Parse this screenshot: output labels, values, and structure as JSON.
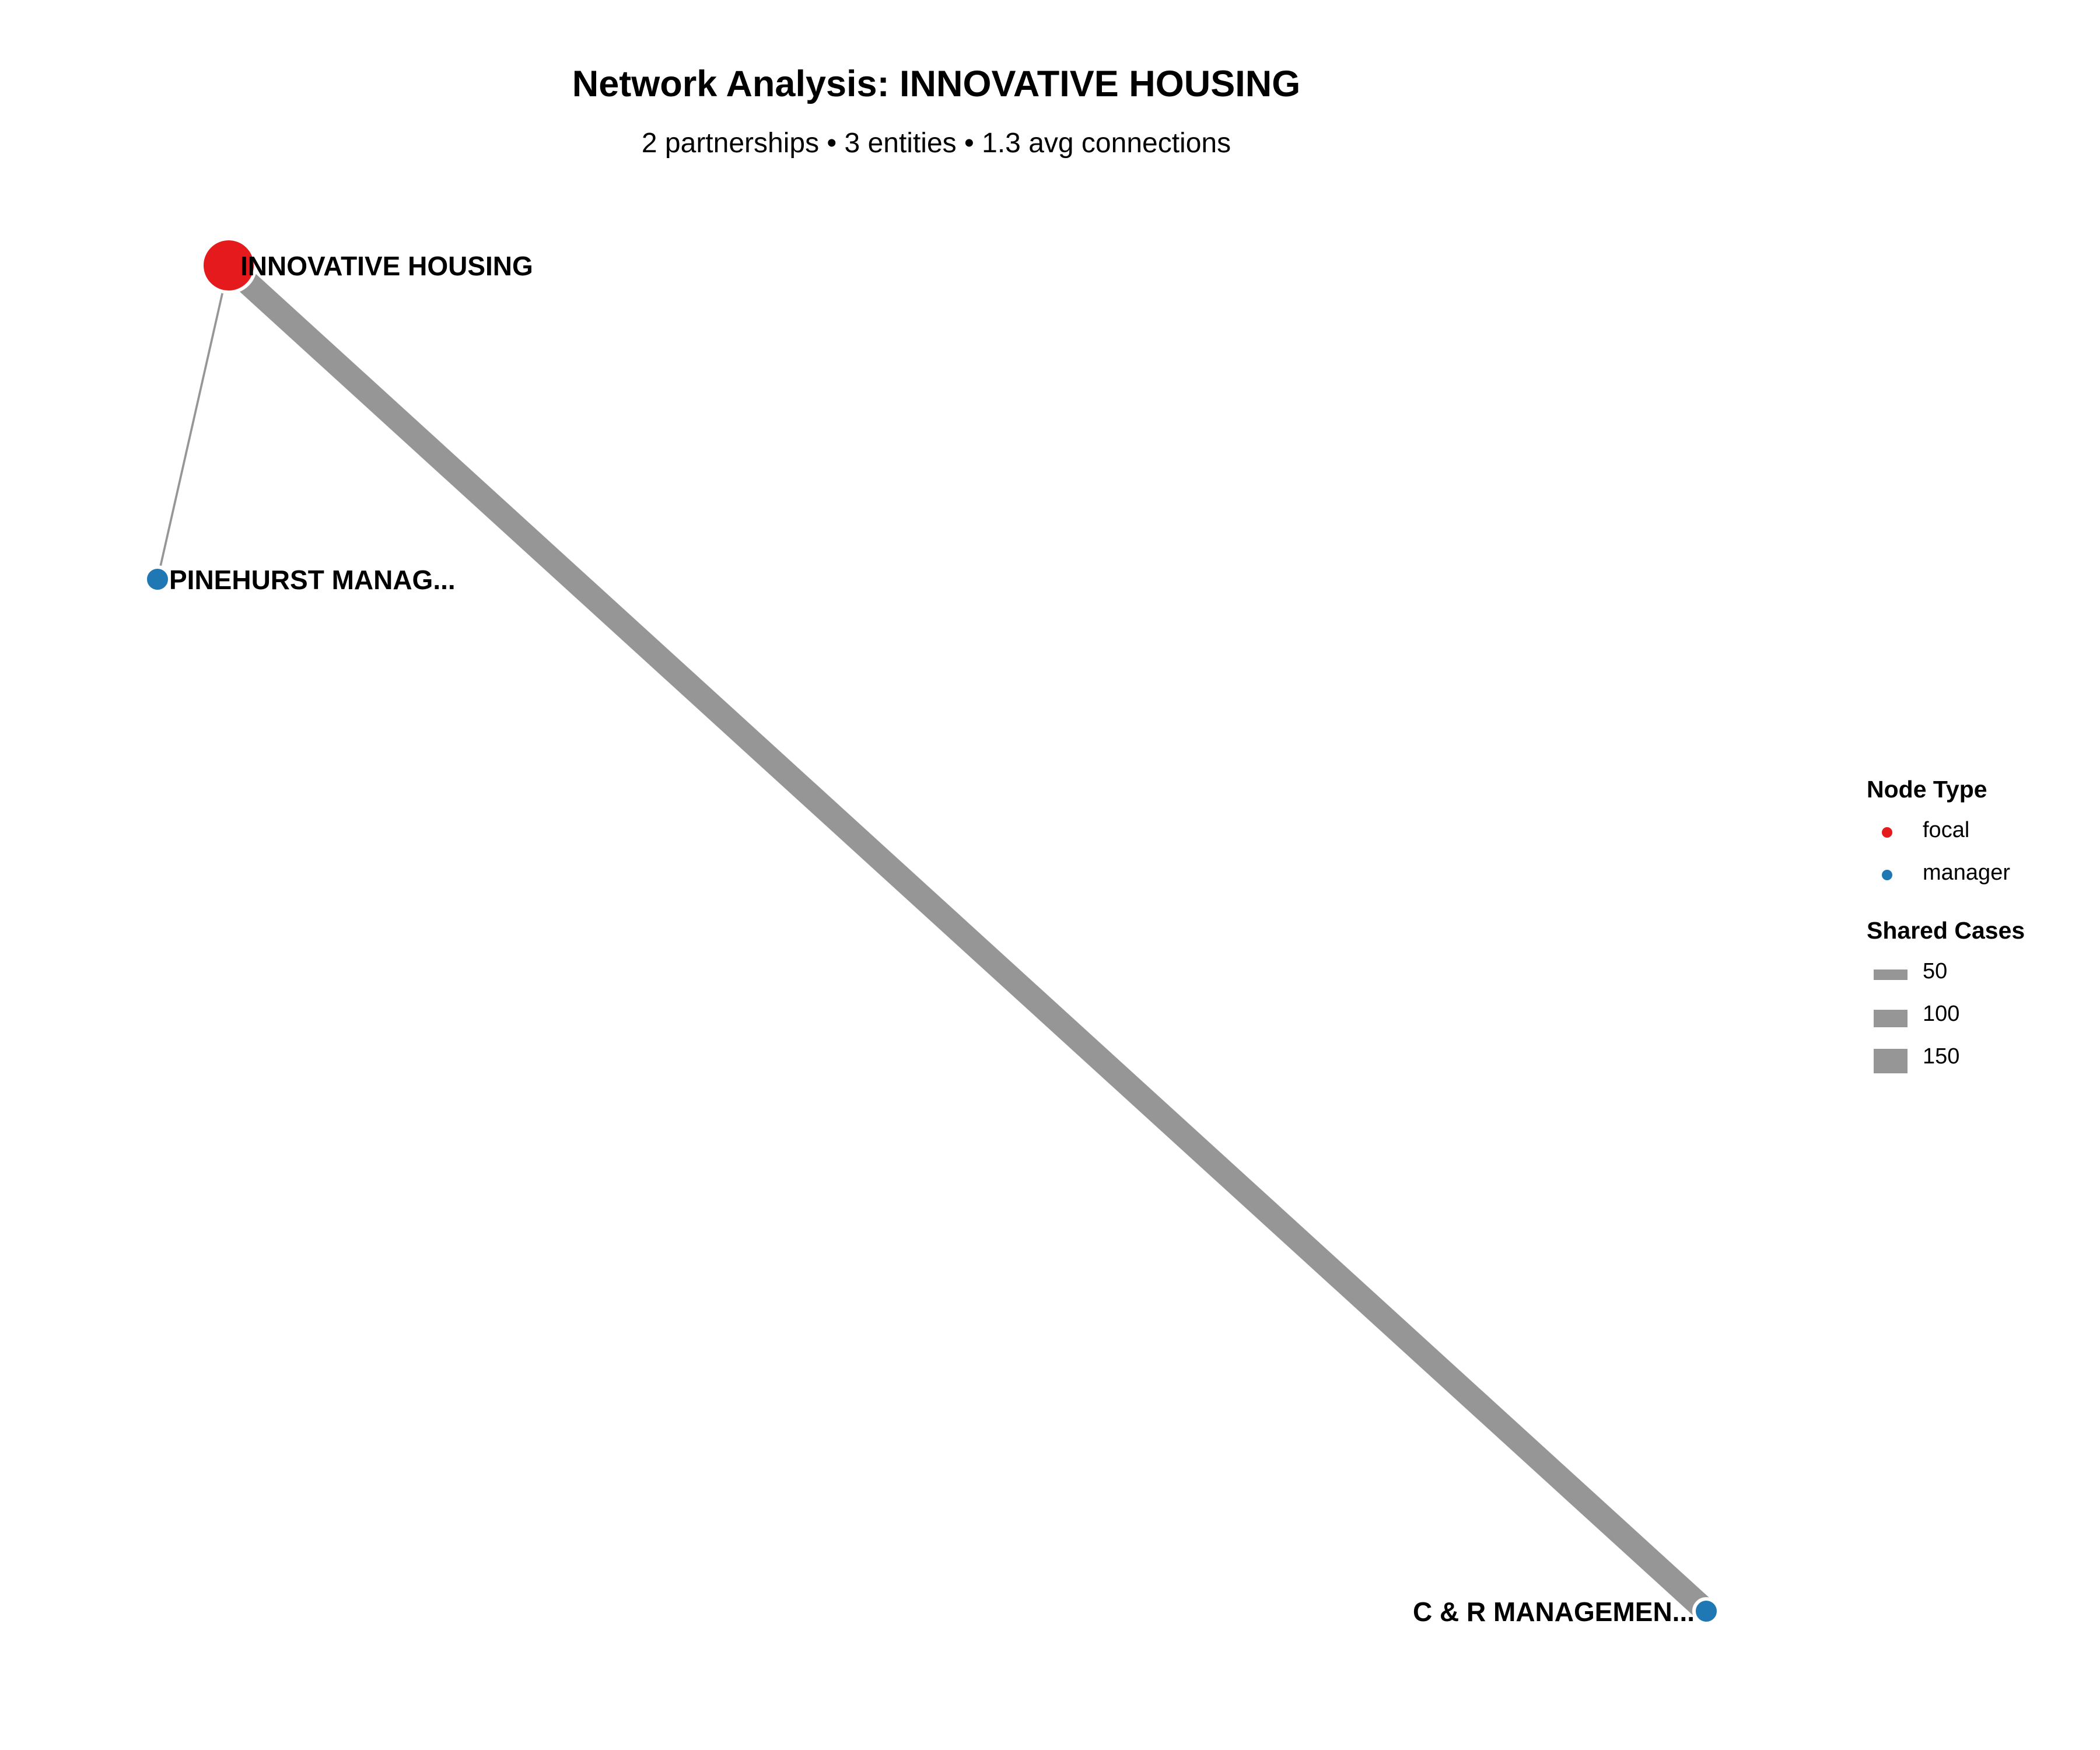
{
  "title": "Network Analysis: INNOVATIVE HOUSING",
  "subtitle": "2 partnerships • 3 entities • 1.3 avg connections",
  "colors": {
    "focal": "#e41a1c",
    "manager": "#1f78b4",
    "edge": "#969696"
  },
  "nodes": [
    {
      "id": "innovative",
      "label": "INNOVATIVE HOUSING",
      "type": "focal"
    },
    {
      "id": "pinehurst",
      "label": "PINEHURST MANAG...",
      "type": "manager"
    },
    {
      "id": "cr",
      "label": "C & R MANAGEMEN...",
      "type": "manager"
    }
  ],
  "edges": [
    {
      "source": "innovative",
      "target": "pinehurst",
      "shared_cases": 10
    },
    {
      "source": "innovative",
      "target": "cr",
      "shared_cases": 180
    }
  ],
  "legend": {
    "node_type_title": "Node Type",
    "node_types": [
      {
        "label": "focal",
        "color": "#e41a1c"
      },
      {
        "label": "manager",
        "color": "#1f78b4"
      }
    ],
    "shared_cases_title": "Shared Cases",
    "shared_cases": [
      {
        "label": "50",
        "value": 50
      },
      {
        "label": "100",
        "value": 100
      },
      {
        "label": "150",
        "value": 150
      }
    ]
  }
}
